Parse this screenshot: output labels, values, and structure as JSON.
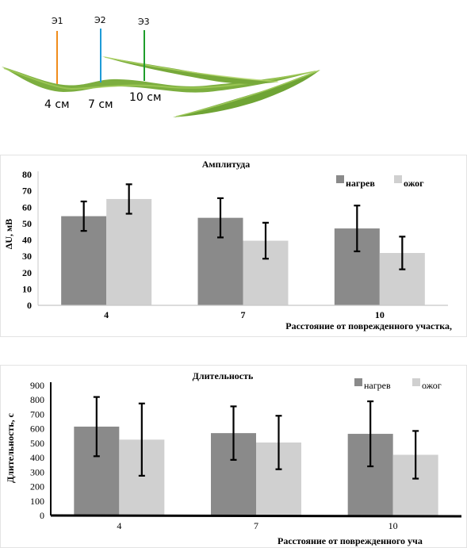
{
  "diagram": {
    "electrodes": [
      {
        "label": "Э1",
        "color": "#f08c1c"
      },
      {
        "label": "Э2",
        "color": "#1f9bd7"
      },
      {
        "label": "Э3",
        "color": "#1e9e2c"
      }
    ],
    "distances": [
      "4 см",
      "7 см",
      "10 см"
    ]
  },
  "chart_data": [
    {
      "type": "bar",
      "title": "Амплитуда",
      "ylabel": "ΔU, мВ",
      "xlabel": "Расстояние от поврежденного участка,",
      "categories": [
        "4",
        "7",
        "10"
      ],
      "ylim": [
        0,
        80
      ],
      "yticks": [
        0,
        10,
        20,
        30,
        40,
        50,
        60,
        70,
        80
      ],
      "legend_position": "top-right",
      "grid": false,
      "series": [
        {
          "name": "нагрев",
          "color": "#8a8a8a",
          "values": [
            54.5,
            53.5,
            47
          ],
          "errors": [
            9,
            12,
            14
          ]
        },
        {
          "name": "ожог",
          "color": "#d0d0d0",
          "values": [
            65,
            39.5,
            32
          ],
          "errors": [
            9,
            11,
            10
          ]
        }
      ]
    },
    {
      "type": "bar",
      "title": "Длительность",
      "ylabel": "Длительность, с",
      "xlabel": "Расстояние от поврежденного уча",
      "categories": [
        "4",
        "7",
        "10"
      ],
      "ylim": [
        0,
        900
      ],
      "yticks": [
        0,
        100,
        200,
        300,
        400,
        500,
        600,
        700,
        800,
        900
      ],
      "legend_position": "top-right",
      "grid": false,
      "series": [
        {
          "name": "нагрев",
          "color": "#8a8a8a",
          "values": [
            615,
            570,
            565
          ],
          "errors": [
            205,
            185,
            225
          ]
        },
        {
          "name": "ожог",
          "color": "#d0d0d0",
          "values": [
            525,
            505,
            420
          ],
          "errors": [
            250,
            185,
            165
          ]
        }
      ]
    }
  ]
}
